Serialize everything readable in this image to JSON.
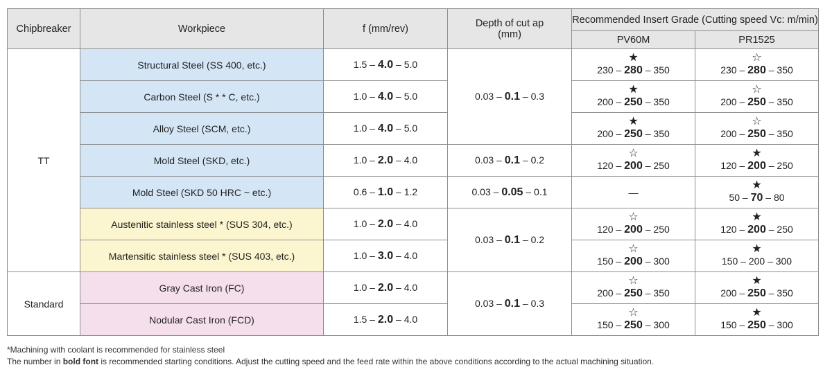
{
  "headers": {
    "chipbreaker": "Chipbreaker",
    "workpiece": "Workpiece",
    "feed": "f (mm/rev)",
    "depth": "Depth of cut ap (mm)",
    "grade": "Recommended Insert Grade (Cutting speed Vc: m/min)",
    "grades": [
      "PV60M",
      "PR1525"
    ]
  },
  "groups": [
    {
      "name": "TT"
    },
    {
      "name": "Standard"
    }
  ],
  "rows": [
    {
      "workpiece": "Structural Steel (SS 400, etc.)",
      "feed": {
        "min": "1.5",
        "rec": "4.0",
        "max": "5.0"
      },
      "pv60m": {
        "star": "★",
        "min": "230",
        "rec": "280",
        "max": "350"
      },
      "pr1525": {
        "star": "☆",
        "min": "230",
        "rec": "280",
        "max": "350"
      }
    },
    {
      "workpiece": "Carbon Steel (S * * C, etc.)",
      "feed": {
        "min": "1.0",
        "rec": "4.0",
        "max": "5.0"
      },
      "pv60m": {
        "star": "★",
        "min": "200",
        "rec": "250",
        "max": "350"
      },
      "pr1525": {
        "star": "☆",
        "min": "200",
        "rec": "250",
        "max": "350"
      }
    },
    {
      "workpiece": "Alloy Steel (SCM, etc.)",
      "feed": {
        "min": "1.0",
        "rec": "4.0",
        "max": "5.0"
      },
      "pv60m": {
        "star": "★",
        "min": "200",
        "rec": "250",
        "max": "350"
      },
      "pr1525": {
        "star": "☆",
        "min": "200",
        "rec": "250",
        "max": "350"
      }
    },
    {
      "workpiece": "Mold Steel (SKD, etc.)",
      "feed": {
        "min": "1.0",
        "rec": "2.0",
        "max": "4.0"
      },
      "pv60m": {
        "star": "☆",
        "min": "120",
        "rec": "200",
        "max": "250"
      },
      "pr1525": {
        "star": "★",
        "min": "120",
        "rec": "200",
        "max": "250"
      }
    },
    {
      "workpiece": "Mold Steel (SKD 50 HRC ~ etc.)",
      "feed": {
        "min": "0.6",
        "rec": "1.0",
        "max": "1.2"
      },
      "pv60m_none": "—",
      "pr1525": {
        "star": "★",
        "min": "50",
        "rec": "70",
        "max": "80"
      }
    },
    {
      "workpiece": "Austenitic stainless steel * (SUS 304, etc.)",
      "feed": {
        "min": "1.0",
        "rec": "2.0",
        "max": "4.0"
      },
      "pv60m": {
        "star": "☆",
        "min": "120",
        "rec": "200",
        "max": "250"
      },
      "pr1525": {
        "star": "★",
        "min": "120",
        "rec": "200",
        "max": "250"
      }
    },
    {
      "workpiece": "Martensitic stainless steel * (SUS 403, etc.)",
      "feed": {
        "min": "1.0",
        "rec": "3.0",
        "max": "4.0"
      },
      "pv60m": {
        "star": "☆",
        "min": "150",
        "rec": "200",
        "max": "300"
      },
      "pr1525": {
        "star": "★",
        "text": "150 – 200 – 300"
      }
    },
    {
      "workpiece": "Gray Cast Iron (FC)",
      "feed": {
        "min": "1.0",
        "rec": "2.0",
        "max": "4.0"
      },
      "pv60m": {
        "star": "☆",
        "min": "200",
        "rec": "250",
        "max": "350"
      },
      "pr1525": {
        "star": "★",
        "min": "200",
        "rec": "250",
        "max": "350"
      }
    },
    {
      "workpiece": "Nodular Cast Iron (FCD)",
      "feed": {
        "min": "1.5",
        "rec": "2.0",
        "max": "4.0"
      },
      "pv60m": {
        "star": "☆",
        "min": "150",
        "rec": "250",
        "max": "300"
      },
      "pr1525": {
        "star": "★",
        "min": "150",
        "rec": "250",
        "max": "300"
      }
    }
  ],
  "depths": [
    {
      "min": "0.03",
      "rec": "0.1",
      "max": "0.3"
    },
    {
      "min": "0.03",
      "rec": "0.1",
      "max": "0.2"
    },
    {
      "min": "0.03",
      "rec": "0.05",
      "max": "0.1"
    },
    {
      "min": "0.03",
      "rec": "0.1",
      "max": "0.2"
    },
    {
      "min": "0.03",
      "rec": "0.1",
      "max": "0.3"
    }
  ],
  "notes": {
    "coolant": "*Machining with coolant is recommended for stainless steel",
    "pre": "The number in ",
    "bold": "bold font",
    "post": " is recommended starting conditions. Adjust the cutting speed and the feed rate within the above conditions according to the actual machining situation."
  }
}
